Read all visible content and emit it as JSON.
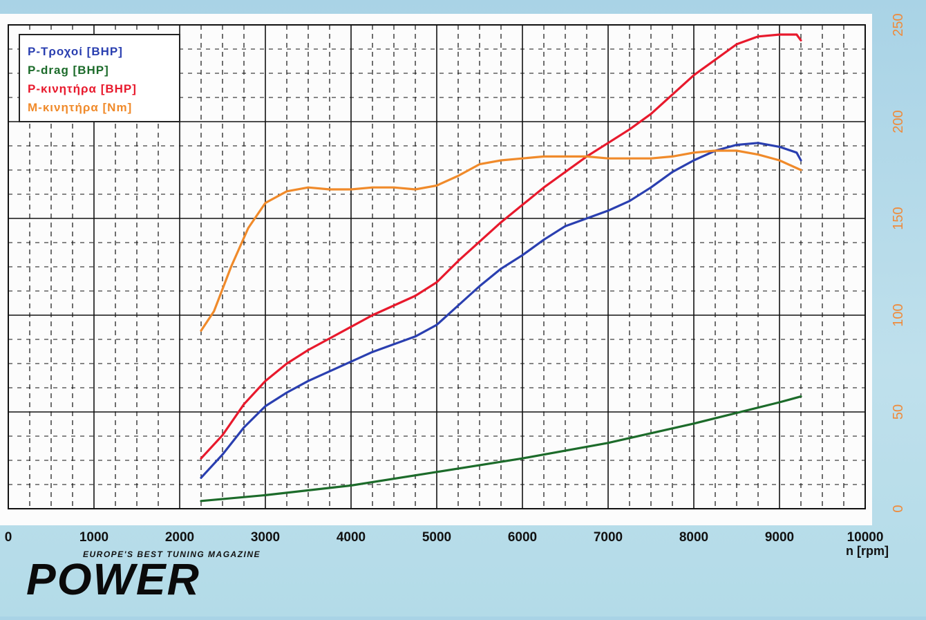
{
  "chart_data": {
    "type": "line",
    "x_unit_label": "n [rpm]",
    "xlim": [
      0,
      10000
    ],
    "xticks": [
      0,
      1000,
      2000,
      3000,
      4000,
      5000,
      6000,
      7000,
      8000,
      9000,
      10000
    ],
    "ylim": [
      0,
      250
    ],
    "yticks": [
      0,
      50,
      100,
      150,
      200,
      250
    ],
    "grid": true,
    "legend_position": "top-left",
    "series": [
      {
        "name": "P-Τροχοί [BHP]",
        "color": "#2a3fb0",
        "x": [
          2250,
          2500,
          2750,
          3000,
          3250,
          3500,
          3750,
          4000,
          4250,
          4500,
          4750,
          5000,
          5250,
          5500,
          5750,
          6000,
          6250,
          6500,
          6750,
          7000,
          7250,
          7500,
          7750,
          8000,
          8250,
          8500,
          8750,
          9000,
          9200,
          9250
        ],
        "y": [
          16,
          28,
          42,
          53,
          60,
          66,
          71,
          76,
          81,
          85,
          89,
          95,
          105,
          115,
          124,
          131,
          139,
          146,
          150,
          154,
          159,
          166,
          174,
          180,
          185,
          188,
          189,
          187,
          184,
          180
        ]
      },
      {
        "name": "P-drag [BHP]",
        "color": "#1c6b2a",
        "x": [
          2250,
          3000,
          4000,
          5000,
          6000,
          7000,
          8000,
          9000,
          9250
        ],
        "y": [
          4,
          7,
          12,
          19,
          26,
          34,
          44,
          55,
          58
        ]
      },
      {
        "name": "P-κινητήρα [BHP]",
        "color": "#e8192c",
        "x": [
          2250,
          2500,
          2750,
          3000,
          3250,
          3500,
          3750,
          4000,
          4250,
          4500,
          4750,
          5000,
          5250,
          5500,
          5750,
          6000,
          6250,
          6500,
          6750,
          7000,
          7250,
          7500,
          7750,
          8000,
          8250,
          8500,
          8750,
          9000,
          9200,
          9250
        ],
        "y": [
          26,
          38,
          54,
          66,
          75,
          82,
          88,
          94,
          100,
          105,
          110,
          117,
          128,
          138,
          148,
          157,
          166,
          174,
          182,
          189,
          196,
          204,
          214,
          224,
          232,
          240,
          244,
          245,
          245,
          242
        ]
      },
      {
        "name": "M-κινητήρα [Nm]",
        "color": "#f08a2a",
        "x": [
          2250,
          2400,
          2600,
          2800,
          3000,
          3250,
          3500,
          3750,
          4000,
          4250,
          4500,
          4750,
          5000,
          5250,
          5500,
          5750,
          6000,
          6250,
          6500,
          6750,
          7000,
          7250,
          7500,
          7750,
          8000,
          8250,
          8500,
          8750,
          9000,
          9250
        ],
        "y": [
          92,
          102,
          125,
          145,
          158,
          164,
          166,
          165,
          165,
          166,
          166,
          165,
          167,
          172,
          178,
          180,
          181,
          182,
          182,
          182,
          181,
          181,
          181,
          182,
          184,
          185,
          185,
          183,
          180,
          175
        ]
      }
    ]
  },
  "branding": {
    "tagline": "EUROPE'S BEST TUNING MAGAZINE",
    "name": "POWER"
  },
  "colors": {
    "tick_label_right": "#ef8a3a",
    "grid": "#111111",
    "background": "#ffffff"
  }
}
